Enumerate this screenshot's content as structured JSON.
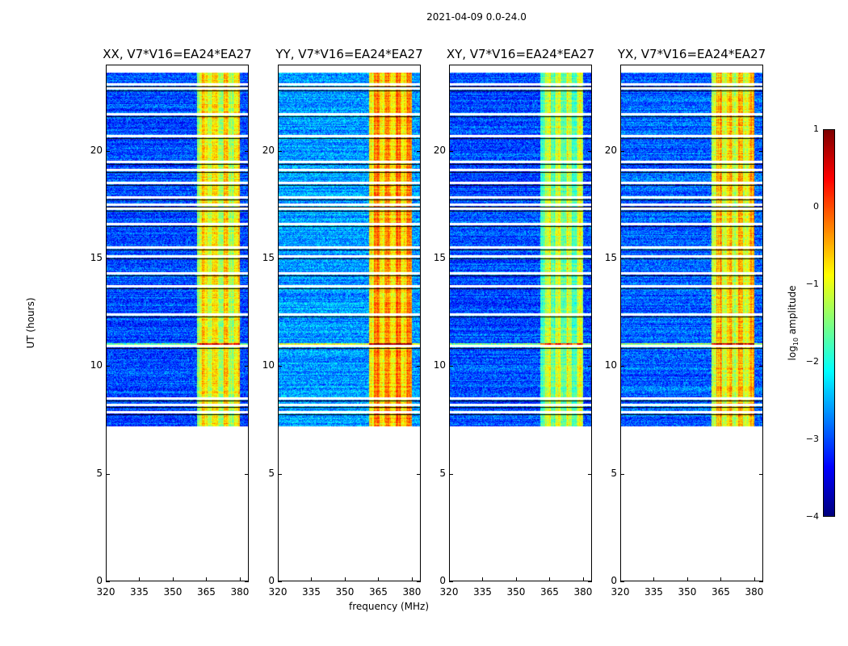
{
  "chart_data": {
    "type": "heatmap",
    "title": "2021-04-09 0.0-24.0",
    "xlabel": "frequency (MHz)",
    "ylabel": "UT (hours)",
    "xlim": [
      320,
      384
    ],
    "ylim": [
      0,
      24
    ],
    "xticks": [
      "320",
      "335",
      "350",
      "365",
      "380"
    ],
    "xtick_values": [
      320,
      335,
      350,
      365,
      380
    ],
    "yticks": [
      "0",
      "5",
      "10",
      "15",
      "20"
    ],
    "ytick_values": [
      0,
      5,
      10,
      15,
      20
    ],
    "data_time_range": [
      7.2,
      23.6
    ],
    "rfi_band_mhz": [
      360.5,
      380
    ],
    "flagged_times": [
      7.85,
      8.2,
      8.5,
      10.95,
      12.4,
      13.7,
      14.3,
      15.1,
      15.5,
      16.6,
      17.3,
      17.5,
      17.85,
      18.5,
      19.1,
      19.5,
      20.7,
      21.7,
      22.9,
      23.1
    ],
    "panels": [
      {
        "title": "XX, V7*V16=EA24*EA27",
        "base_level": -3.0,
        "band_level": -1.0
      },
      {
        "title": "YY, V7*V16=EA24*EA27",
        "base_level": -2.6,
        "band_level": -0.6
      },
      {
        "title": "XY, V7*V16=EA24*EA27",
        "base_level": -3.0,
        "band_level": -1.4
      },
      {
        "title": "YX, V7*V16=EA24*EA27",
        "base_level": -2.9,
        "band_level": -0.9
      }
    ],
    "colorbar": {
      "label": "log₁₀ amplitude",
      "range": [
        -4,
        1
      ],
      "ticks": [
        "1",
        "0",
        "−1",
        "−2",
        "−3",
        "−4"
      ],
      "tick_values": [
        1,
        0,
        -1,
        -2,
        -3,
        -4
      ],
      "colormap": "jet"
    }
  }
}
